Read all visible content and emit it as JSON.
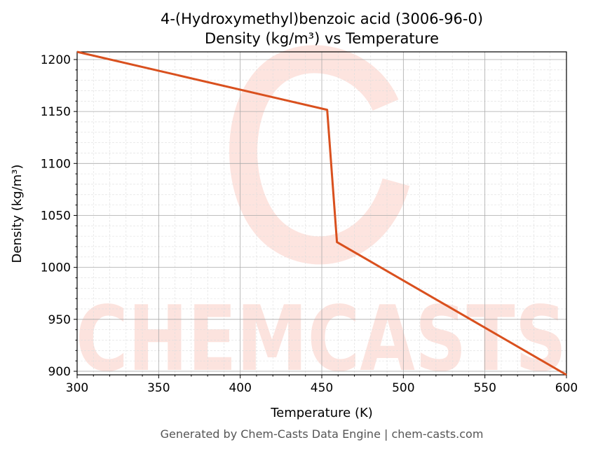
{
  "chart_data": {
    "type": "line",
    "title": "4-(Hydroxymethyl)benzoic acid (3006-96-0)",
    "subtitle": "Density (kg/m³) vs Temperature",
    "xlabel": "Temperature (K)",
    "ylabel": "Density (kg/m³)",
    "xlim": [
      300,
      600
    ],
    "ylim": [
      896.6,
      1207.4
    ],
    "xticks": [
      300,
      350,
      400,
      450,
      500,
      550,
      600
    ],
    "yticks": [
      900,
      950,
      1000,
      1050,
      1100,
      1150,
      1200
    ],
    "grid": true,
    "series": [
      {
        "color": "#d9501e",
        "x": [
          300,
          453.3,
          459.3,
          600
        ],
        "y": [
          1207.4,
          1151.6,
          1024.3,
          896.6
        ]
      }
    ]
  },
  "watermark": "CHEMCASTS",
  "footer": "Generated by Chem-Casts Data Engine | chem-casts.com"
}
